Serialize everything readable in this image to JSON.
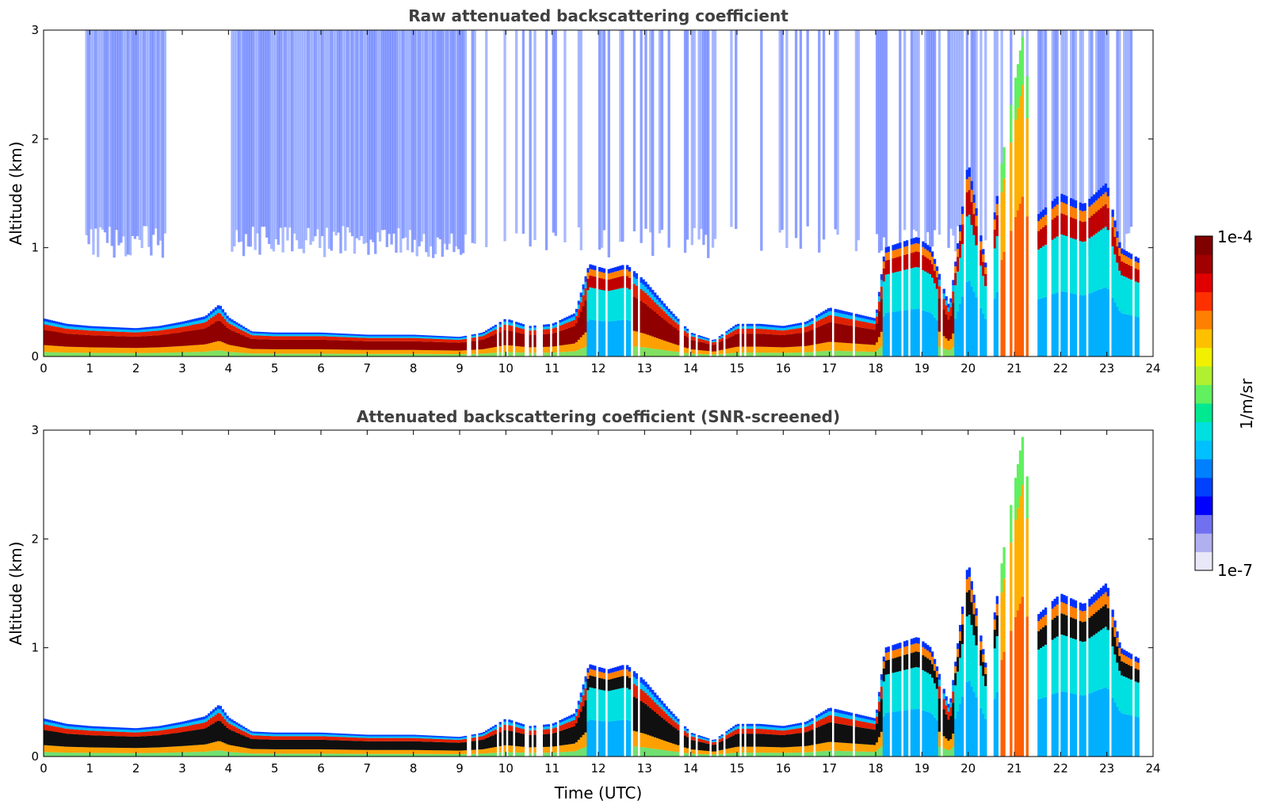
{
  "chart_data": [
    {
      "type": "heatmap",
      "title": "Raw attenuated backscattering coefficient",
      "xlabel": "",
      "ylabel": "Altitude (km)",
      "xlim": [
        0,
        24
      ],
      "ylim": [
        0,
        3
      ],
      "xticks": [
        "0",
        "1",
        "2",
        "3",
        "4",
        "5",
        "6",
        "7",
        "8",
        "9",
        "10",
        "11",
        "12",
        "13",
        "14",
        "15",
        "16",
        "17",
        "18",
        "19",
        "20",
        "21",
        "22",
        "23",
        "24"
      ],
      "yticks": [
        "0",
        "1",
        "2",
        "3"
      ],
      "screened": false,
      "layer_top_km": [
        [
          0.0,
          0.35
        ],
        [
          0.5,
          0.3
        ],
        [
          1.0,
          0.28
        ],
        [
          1.5,
          0.27
        ],
        [
          2.0,
          0.26
        ],
        [
          2.5,
          0.28
        ],
        [
          3.0,
          0.32
        ],
        [
          3.5,
          0.37
        ],
        [
          3.8,
          0.48
        ],
        [
          4.0,
          0.36
        ],
        [
          4.5,
          0.23
        ],
        [
          5.0,
          0.22
        ],
        [
          6.0,
          0.22
        ],
        [
          7.0,
          0.2
        ],
        [
          8.0,
          0.2
        ],
        [
          9.0,
          0.18
        ],
        [
          9.5,
          0.22
        ],
        [
          10.0,
          0.35
        ],
        [
          10.5,
          0.28
        ],
        [
          11.0,
          0.3
        ],
        [
          11.5,
          0.4
        ],
        [
          11.8,
          0.85
        ],
        [
          12.2,
          0.8
        ],
        [
          12.6,
          0.85
        ],
        [
          13.0,
          0.7
        ],
        [
          13.5,
          0.45
        ],
        [
          14.0,
          0.22
        ],
        [
          14.5,
          0.15
        ],
        [
          15.0,
          0.3
        ],
        [
          15.5,
          0.3
        ],
        [
          16.0,
          0.28
        ],
        [
          16.5,
          0.32
        ],
        [
          17.0,
          0.45
        ],
        [
          17.5,
          0.4
        ],
        [
          18.0,
          0.35
        ],
        [
          18.2,
          1.0
        ],
        [
          18.9,
          1.1
        ],
        [
          19.2,
          1.0
        ],
        [
          19.6,
          0.45
        ],
        [
          20.0,
          1.8
        ],
        [
          20.4,
          0.8
        ],
        [
          20.8,
          2.0
        ],
        [
          21.2,
          3.0
        ],
        [
          21.5,
          1.3
        ],
        [
          22.0,
          1.5
        ],
        [
          22.5,
          1.4
        ],
        [
          23.0,
          1.6
        ],
        [
          23.3,
          1.0
        ],
        [
          23.7,
          0.9
        ]
      ]
    },
    {
      "type": "heatmap",
      "title": "Attenuated backscattering coefficient (SNR-screened)",
      "xlabel": "Time (UTC)",
      "ylabel": "Altitude (km)",
      "xlim": [
        0,
        24
      ],
      "ylim": [
        0,
        3
      ],
      "xticks": [
        "0",
        "1",
        "2",
        "3",
        "4",
        "5",
        "6",
        "7",
        "8",
        "9",
        "10",
        "11",
        "12",
        "13",
        "14",
        "15",
        "16",
        "17",
        "18",
        "19",
        "20",
        "21",
        "22",
        "23",
        "24"
      ],
      "yticks": [
        "0",
        "1",
        "2",
        "3"
      ],
      "screened": true,
      "layer_top_km": [
        [
          0.0,
          0.35
        ],
        [
          0.5,
          0.3
        ],
        [
          1.0,
          0.28
        ],
        [
          1.5,
          0.27
        ],
        [
          2.0,
          0.26
        ],
        [
          2.5,
          0.28
        ],
        [
          3.0,
          0.32
        ],
        [
          3.5,
          0.37
        ],
        [
          3.8,
          0.48
        ],
        [
          4.0,
          0.36
        ],
        [
          4.5,
          0.23
        ],
        [
          5.0,
          0.22
        ],
        [
          6.0,
          0.22
        ],
        [
          7.0,
          0.2
        ],
        [
          8.0,
          0.2
        ],
        [
          9.0,
          0.18
        ],
        [
          9.5,
          0.22
        ],
        [
          10.0,
          0.35
        ],
        [
          10.5,
          0.28
        ],
        [
          11.0,
          0.3
        ],
        [
          11.5,
          0.4
        ],
        [
          11.8,
          0.85
        ],
        [
          12.2,
          0.8
        ],
        [
          12.6,
          0.85
        ],
        [
          13.0,
          0.7
        ],
        [
          13.5,
          0.45
        ],
        [
          14.0,
          0.22
        ],
        [
          14.5,
          0.15
        ],
        [
          15.0,
          0.3
        ],
        [
          15.5,
          0.3
        ],
        [
          16.0,
          0.28
        ],
        [
          16.5,
          0.32
        ],
        [
          17.0,
          0.45
        ],
        [
          17.5,
          0.4
        ],
        [
          18.0,
          0.35
        ],
        [
          18.2,
          1.0
        ],
        [
          18.9,
          1.1
        ],
        [
          19.2,
          1.0
        ],
        [
          19.6,
          0.45
        ],
        [
          20.0,
          1.8
        ],
        [
          20.4,
          0.8
        ],
        [
          20.8,
          2.0
        ],
        [
          21.2,
          3.0
        ],
        [
          21.5,
          1.3
        ],
        [
          22.0,
          1.5
        ],
        [
          22.5,
          1.4
        ],
        [
          23.0,
          1.6
        ],
        [
          23.3,
          1.0
        ],
        [
          23.7,
          0.9
        ]
      ]
    }
  ],
  "colorbar": {
    "label": "1/m/sr",
    "min_label": "1e-7",
    "max_label": "1e-4",
    "colors": [
      "#e8e8f8",
      "#b0b0f0",
      "#7070f0",
      "#0000ff",
      "#0040ff",
      "#0080ff",
      "#00c0ff",
      "#00e0e0",
      "#00e890",
      "#60f060",
      "#b0f030",
      "#f0f000",
      "#ffc000",
      "#ff8000",
      "#ff3000",
      "#e00000",
      "#a00000",
      "#800000"
    ]
  }
}
